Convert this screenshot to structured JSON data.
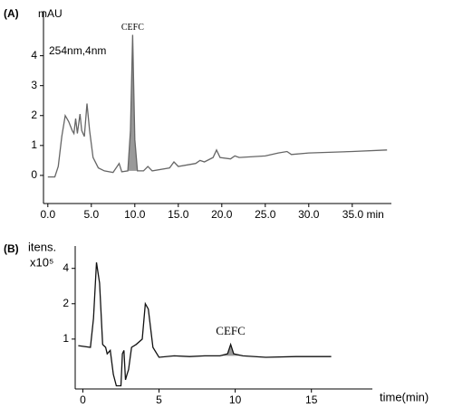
{
  "chart_data": [
    {
      "type": "line",
      "panel_label": "(A)",
      "y_label": "mAU",
      "note": "254nm,4nm",
      "annotations": [
        {
          "text": "CEFC",
          "x": 9.75
        }
      ],
      "color": "#666666",
      "fill_color": "#999999",
      "x": [
        0,
        0.8,
        1.2,
        1.6,
        2.0,
        2.4,
        2.8,
        3.0,
        3.2,
        3.4,
        3.7,
        3.9,
        4.2,
        4.5,
        4.8,
        5.2,
        5.8,
        6.5,
        7.5,
        8.2,
        8.5,
        9.2,
        9.5,
        9.75,
        10.0,
        10.3,
        11.0,
        11.5,
        12,
        14,
        14.5,
        15,
        17,
        17.5,
        18,
        19,
        19.4,
        19.8,
        21,
        21.5,
        22,
        25,
        26.5,
        27.5,
        28,
        30,
        35,
        39
      ],
      "values": [
        -0.05,
        -0.05,
        0.3,
        1.3,
        2.0,
        1.8,
        1.5,
        1.4,
        1.9,
        1.4,
        2.05,
        1.5,
        1.3,
        2.4,
        1.5,
        0.6,
        0.25,
        0.15,
        0.1,
        0.4,
        0.12,
        0.15,
        1.5,
        4.7,
        1.2,
        0.15,
        0.15,
        0.3,
        0.15,
        0.25,
        0.45,
        0.3,
        0.4,
        0.5,
        0.45,
        0.6,
        0.85,
        0.6,
        0.55,
        0.65,
        0.6,
        0.65,
        0.75,
        0.8,
        0.7,
        0.75,
        0.8,
        0.85
      ],
      "xlim": [
        -0.5,
        39.5
      ],
      "ylim": [
        -0.94,
        5.5
      ],
      "log_y": false,
      "xticks": [
        {
          "value": 0,
          "label": "0.0"
        },
        {
          "value": 5,
          "label": "5.0"
        },
        {
          "value": 10,
          "label": "10.0"
        },
        {
          "value": 15,
          "label": "15.0"
        },
        {
          "value": 20,
          "label": "20.0"
        },
        {
          "value": 25,
          "label": "25.0"
        },
        {
          "value": 30,
          "label": "30.0"
        },
        {
          "value": 35,
          "label": "35.0 min"
        }
      ],
      "yticks": [
        0,
        1,
        2,
        3,
        4
      ]
    },
    {
      "type": "line",
      "panel_label": "(B)",
      "y_label": [
        "itens.",
        "x10⁵"
      ],
      "x_label": "time(min)",
      "annotations": [
        {
          "text": "CEFC",
          "x": 9.7
        }
      ],
      "color": "#111111",
      "fill_color": "#999999",
      "x": [
        -0.3,
        0.5,
        0.7,
        0.9,
        1.1,
        1.3,
        1.5,
        1.6,
        1.8,
        2.0,
        2.2,
        2.5,
        2.6,
        2.7,
        2.8,
        2.9,
        3.0,
        3.2,
        3.5,
        3.9,
        4.1,
        4.3,
        4.6,
        5,
        6,
        7,
        8,
        9,
        9.5,
        9.7,
        9.9,
        10.5,
        12,
        14,
        16.3
      ],
      "values": [
        0.88,
        0.85,
        1.5,
        4.5,
        3.0,
        0.9,
        0.85,
        0.75,
        0.8,
        0.5,
        0.4,
        0.4,
        0.75,
        0.8,
        0.45,
        0.5,
        0.55,
        0.85,
        0.9,
        1.0,
        2.0,
        1.8,
        0.85,
        0.7,
        0.72,
        0.71,
        0.72,
        0.72,
        0.75,
        0.9,
        0.75,
        0.72,
        0.7,
        0.71,
        0.71
      ],
      "xlim": [
        -0.5,
        19
      ],
      "ylim": [
        0.376,
        6.2
      ],
      "log_y": true,
      "xticks": [
        0,
        5,
        10,
        15
      ],
      "yticks": [
        1,
        2,
        4
      ]
    }
  ]
}
